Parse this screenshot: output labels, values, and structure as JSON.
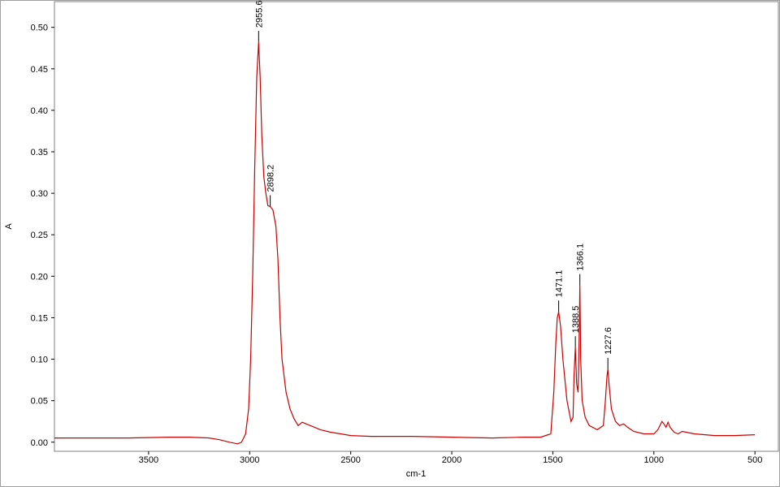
{
  "chart_data": {
    "type": "line",
    "xlabel": "cm-1",
    "ylabel": "A",
    "xlim": [
      3966,
      384
    ],
    "ylim": [
      -0.011,
      0.531
    ],
    "xticks": [
      3500,
      3000,
      2500,
      2000,
      1500,
      1000,
      500
    ],
    "yticks": [
      {
        "value": 0,
        "label": "0.00"
      },
      0.05,
      {
        "value": 0.1,
        "label": "0.10"
      },
      0.15,
      {
        "value": 0.2,
        "label": "0.20"
      },
      0.25,
      {
        "value": 0.3,
        "label": "0.30"
      },
      0.35,
      {
        "value": 0.4,
        "label": "0.40"
      },
      0.45,
      {
        "value": 0.5,
        "label": "0.50"
      }
    ],
    "series": [
      {
        "color": "#cc0000",
        "x": [
          3966,
          3800,
          3600,
          3400,
          3300,
          3200,
          3150,
          3100,
          3060,
          3040,
          3020,
          3005,
          2995,
          2985,
          2975,
          2965,
          2955.6,
          2948,
          2940,
          2930,
          2920,
          2910,
          2898.2,
          2885,
          2870,
          2860,
          2850,
          2840,
          2820,
          2800,
          2780,
          2760,
          2740,
          2720,
          2700,
          2650,
          2600,
          2550,
          2500,
          2400,
          2200,
          2000,
          1800,
          1650,
          1560,
          1510,
          1495,
          1485,
          1478,
          1471.1,
          1462,
          1450,
          1430,
          1410,
          1400,
          1395,
          1388.5,
          1382,
          1375,
          1370,
          1366.1,
          1362,
          1355,
          1340,
          1320,
          1280,
          1250,
          1240,
          1232,
          1227.6,
          1222,
          1210,
          1190,
          1170,
          1150,
          1130,
          1100,
          1050,
          1000,
          980,
          960,
          950,
          940,
          930,
          920,
          900,
          880,
          860,
          840,
          800,
          700,
          600,
          500
        ],
        "values": [
          0.005,
          0.005,
          0.005,
          0.006,
          0.006,
          0.005,
          0.003,
          0.0,
          -0.002,
          0.0,
          0.01,
          0.04,
          0.1,
          0.2,
          0.33,
          0.44,
          0.482,
          0.44,
          0.37,
          0.32,
          0.3,
          0.285,
          0.284,
          0.28,
          0.26,
          0.22,
          0.15,
          0.1,
          0.06,
          0.04,
          0.028,
          0.02,
          0.024,
          0.022,
          0.02,
          0.015,
          0.012,
          0.01,
          0.008,
          0.007,
          0.007,
          0.006,
          0.005,
          0.006,
          0.006,
          0.01,
          0.06,
          0.12,
          0.15,
          0.157,
          0.14,
          0.1,
          0.05,
          0.025,
          0.03,
          0.08,
          0.114,
          0.07,
          0.06,
          0.12,
          0.189,
          0.1,
          0.05,
          0.03,
          0.02,
          0.015,
          0.02,
          0.05,
          0.08,
          0.088,
          0.07,
          0.04,
          0.025,
          0.02,
          0.022,
          0.018,
          0.013,
          0.01,
          0.01,
          0.015,
          0.025,
          0.022,
          0.018,
          0.024,
          0.018,
          0.012,
          0.01,
          0.013,
          0.012,
          0.01,
          0.008,
          0.008,
          0.009
        ]
      }
    ],
    "peaks": [
      {
        "x": 2955.6,
        "y": 0.482
      },
      {
        "x": 2898.2,
        "y": 0.284
      },
      {
        "x": 1471.1,
        "y": 0.157
      },
      {
        "x": 1388.5,
        "y": 0.114
      },
      {
        "x": 1366.1,
        "y": 0.189
      },
      {
        "x": 1227.6,
        "y": 0.088
      }
    ]
  }
}
